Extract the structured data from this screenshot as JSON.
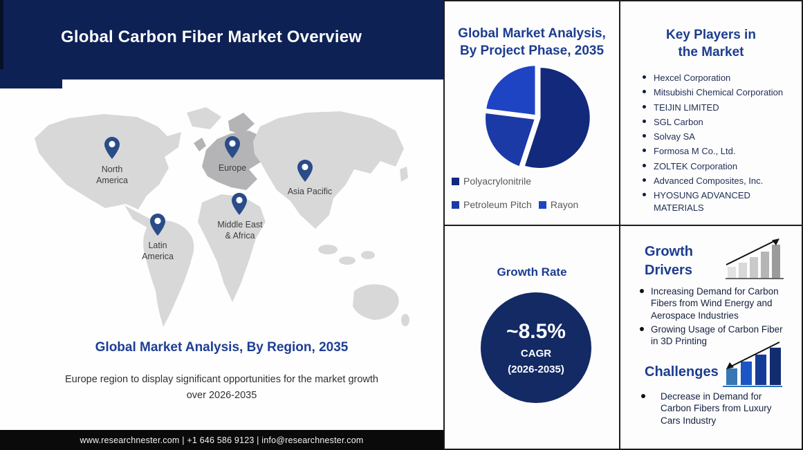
{
  "header": {
    "title": "Global Carbon Fiber Market Overview"
  },
  "map_section": {
    "regions": [
      "North\nAmerica",
      "Europe",
      "Asia Pacific",
      "Middle East\n& Africa",
      "Latin\nAmerica"
    ],
    "title": "Global Market Analysis, By Region, 2035",
    "subtitle": "Europe region to display significant opportunities for the market growth\nover 2026-2035"
  },
  "footer": {
    "text": "www.researchnester.com | +1 646 586 9123 | info@researchnester.com"
  },
  "pie_panel": {
    "title": "Global Market Analysis,\nBy Project Phase, 2035"
  },
  "chart_data": {
    "type": "pie",
    "title": "Global Market Analysis, By Project Phase, 2035",
    "labels": [
      "Polyacrylonitrile",
      "Petroleum Pitch",
      "Rayon"
    ],
    "values": [
      55,
      22,
      23
    ],
    "colors": [
      "#13297b",
      "#1b3aa6",
      "#1e44c4"
    ],
    "legend_position": "bottom"
  },
  "key_players": {
    "title": "Key Players in\nthe Market",
    "items": [
      "Hexcel Corporation",
      "Mitsubishi Chemical Corporation",
      "TEIJIN LIMITED",
      "SGL Carbon",
      "Solvay SA",
      "Formosa M Co., Ltd.",
      "ZOLTEK Corporation",
      "Advanced Composites, Inc.",
      "HYOSUNG ADVANCED MATERIALS"
    ]
  },
  "growth_rate": {
    "title": "Growth Rate",
    "value": "~8.5%",
    "cagr_label": "CAGR",
    "period": "(2026-2035)"
  },
  "drivers": {
    "title": "Growth\nDrivers",
    "items": [
      "Increasing Demand for Carbon Fibers from Wind Energy and Aerospace Industries",
      "Growing Usage of Carbon Fiber in 3D Printing"
    ]
  },
  "challenges": {
    "title": "Challenges",
    "items": [
      "Decrease in Demand for Carbon Fibers from Luxury Cars Industry"
    ]
  },
  "colors": {
    "header_navy": "#0e2155",
    "heading_blue": "#1c3c8f",
    "growth_circle_navy": "#132a64",
    "footer_black": "#0a0a0a",
    "map_land_gray": "#d8d8d8",
    "map_europe_gray": "#b4b4b7",
    "pin_navy": "#2a4c88"
  }
}
